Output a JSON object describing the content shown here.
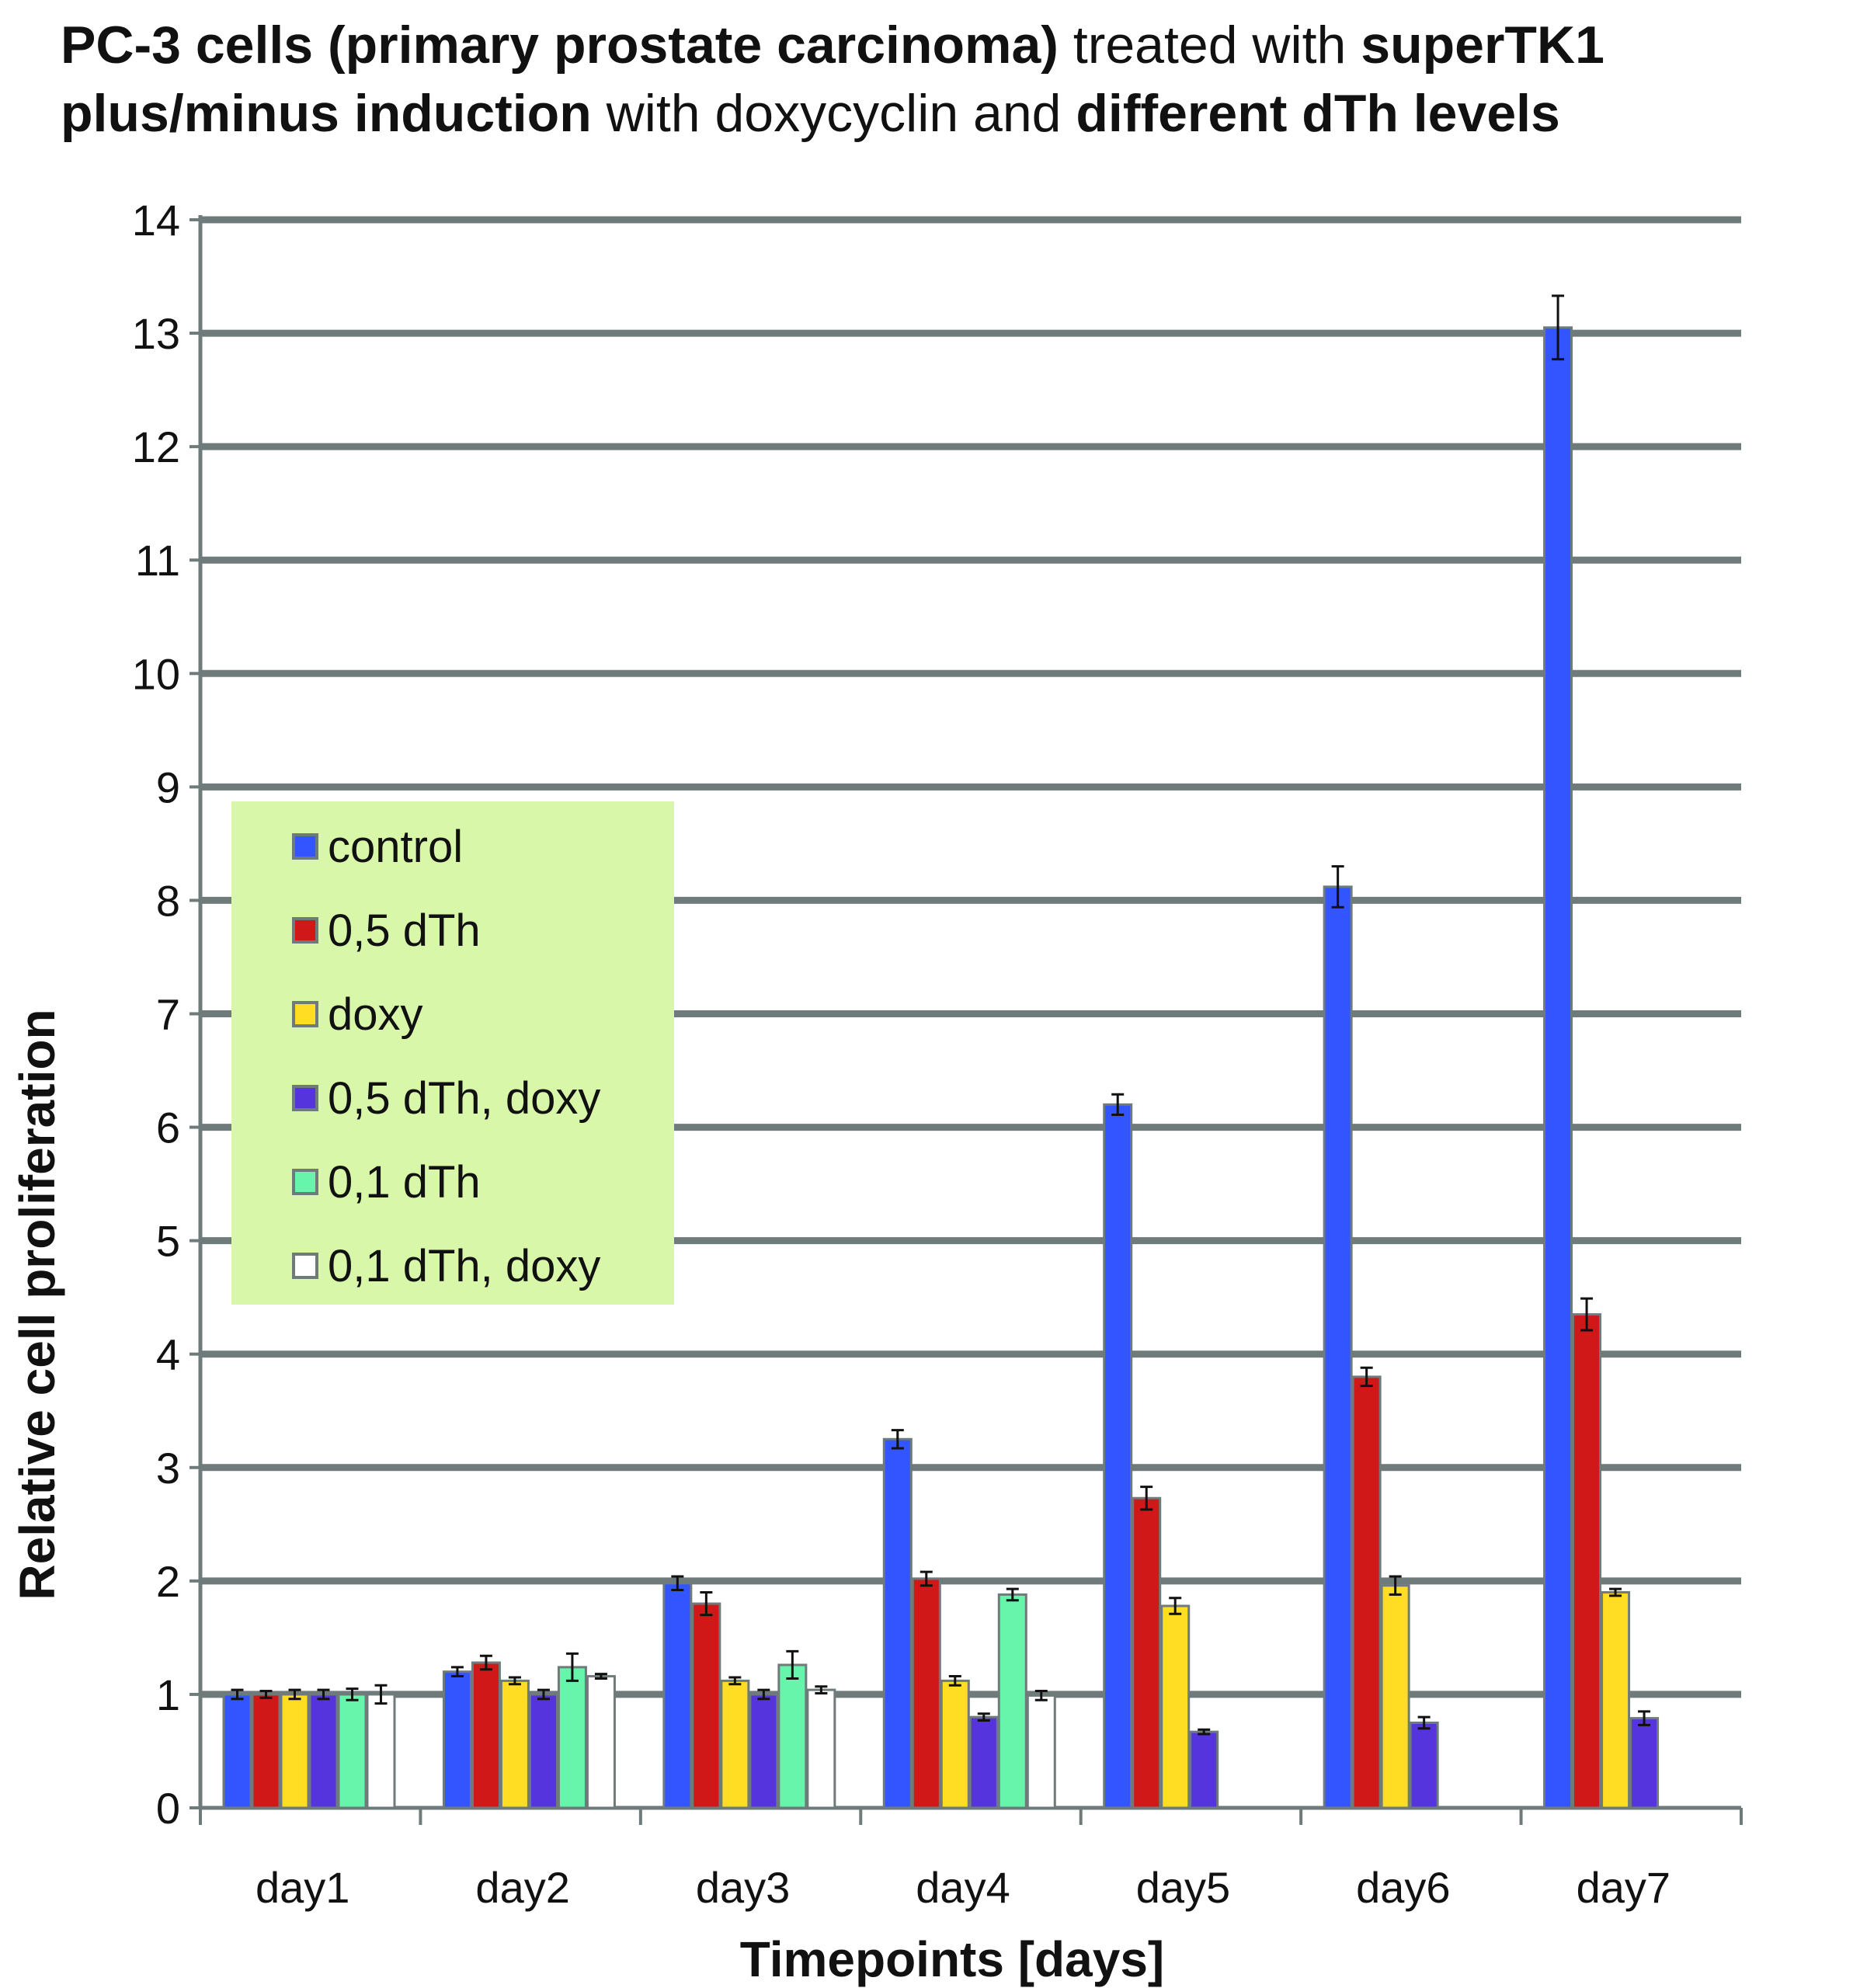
{
  "title_parts": [
    {
      "text": "PC-3 cells (primary prostate carcinoma)",
      "bold": true
    },
    {
      "text": " treated with ",
      "bold": false
    },
    {
      "text": "superTK1",
      "bold": true
    },
    {
      "text": "plus/minus induction",
      "bold": true,
      "newline": true
    },
    {
      "text": " with doxycyclin and ",
      "bold": false
    },
    {
      "text": "different dTh levels",
      "bold": true
    }
  ],
  "chart_data": {
    "type": "bar",
    "title": "PC-3 cells (primary prostate carcinoma) treated with superTK1 plus/minus induction with doxycyclin and different dTh levels",
    "xlabel": "Timepoints [days]",
    "ylabel": "Relative cell proliferation",
    "ylim": [
      0,
      14
    ],
    "yticks": [
      0,
      1,
      2,
      3,
      4,
      5,
      6,
      7,
      8,
      9,
      10,
      11,
      12,
      13,
      14
    ],
    "grid": true,
    "legend_position": "left-middle",
    "categories": [
      "day1",
      "day2",
      "day3",
      "day4",
      "day5",
      "day6",
      "day7"
    ],
    "series": [
      {
        "name": "control",
        "color": "#3355ff",
        "values": [
          1.0,
          1.2,
          1.98,
          3.25,
          6.2,
          8.12,
          13.05
        ],
        "errors": [
          0.04,
          0.04,
          0.06,
          0.08,
          0.09,
          0.18,
          0.28
        ]
      },
      {
        "name": "0,5 dTh",
        "color": "#d01818",
        "values": [
          1.0,
          1.28,
          1.8,
          2.02,
          2.73,
          3.8,
          4.35
        ],
        "errors": [
          0.03,
          0.06,
          0.1,
          0.06,
          0.1,
          0.08,
          0.14
        ]
      },
      {
        "name": "doxy",
        "color": "#ffdd22",
        "values": [
          1.0,
          1.12,
          1.12,
          1.12,
          1.78,
          1.96,
          1.9
        ],
        "errors": [
          0.04,
          0.03,
          0.03,
          0.04,
          0.07,
          0.08,
          0.03
        ]
      },
      {
        "name": "0,5 dTh, doxy",
        "color": "#5533dd",
        "values": [
          1.0,
          1.0,
          1.0,
          0.8,
          0.67,
          0.75,
          0.79
        ],
        "errors": [
          0.04,
          0.04,
          0.04,
          0.03,
          0.02,
          0.05,
          0.06
        ]
      },
      {
        "name": "0,1 dTh",
        "color": "#66f5aa",
        "values": [
          1.0,
          1.24,
          1.26,
          1.88,
          null,
          null,
          null
        ],
        "errors": [
          0.05,
          0.12,
          0.12,
          0.05,
          null,
          null,
          null
        ]
      },
      {
        "name": "0,1 dTh, doxy",
        "color": "#ffffff",
        "values": [
          1.0,
          1.16,
          1.04,
          0.99,
          null,
          null,
          null
        ],
        "errors": [
          0.08,
          0.02,
          0.03,
          0.04,
          null,
          null,
          null
        ]
      }
    ]
  },
  "colors": {
    "gridline": "#6f7b7b",
    "bar_stroke": "#6f7b7b",
    "legend_background": "#d8f7a8",
    "error_bar": "#111111"
  }
}
